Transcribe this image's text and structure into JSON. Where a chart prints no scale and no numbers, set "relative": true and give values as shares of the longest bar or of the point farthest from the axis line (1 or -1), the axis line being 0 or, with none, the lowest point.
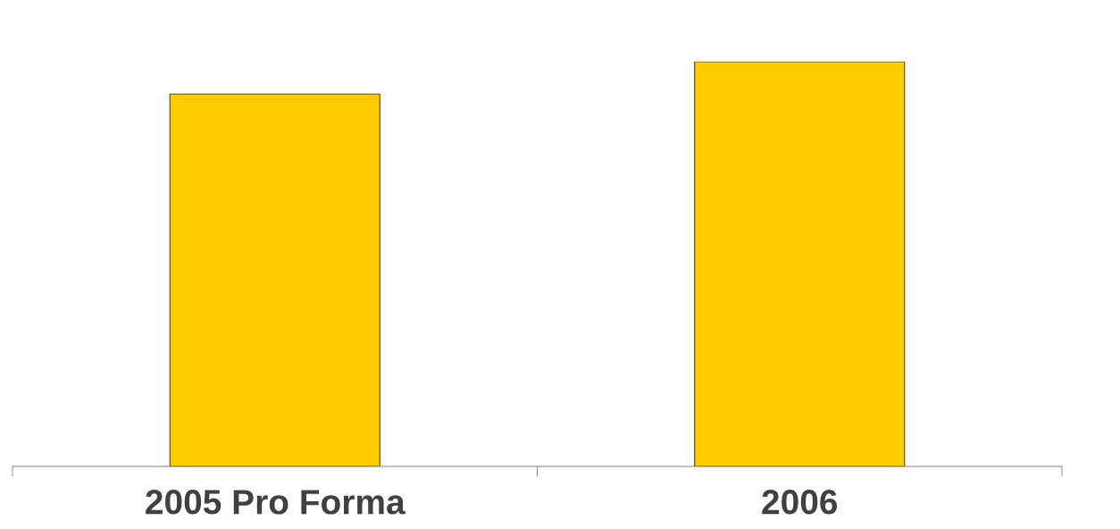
{
  "chart_data": {
    "type": "bar",
    "relative": true,
    "categories": [
      "2005 Pro Forma",
      "2006"
    ],
    "values": [
      0.92,
      1
    ],
    "color": "#ffcc00"
  }
}
